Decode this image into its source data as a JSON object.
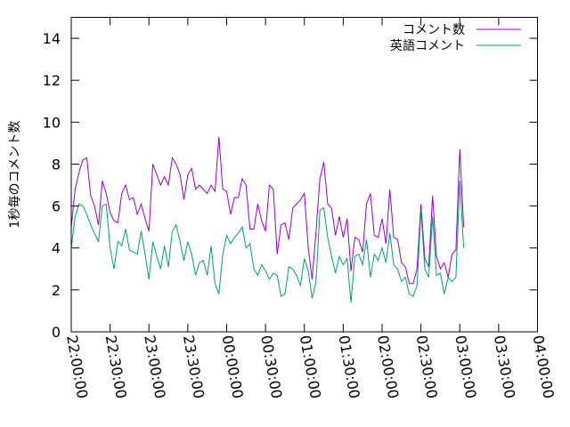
{
  "chart_data": {
    "type": "line",
    "ylabel": "1秒毎のコメント数",
    "ylim": [
      0,
      15
    ],
    "yticks": [
      0,
      2,
      4,
      6,
      8,
      10,
      12,
      14
    ],
    "xrange": [
      "22:00:00",
      "04:00:00"
    ],
    "xticks": [
      "22:00:00",
      "22:30:00",
      "23:00:00",
      "23:30:00",
      "00:00:00",
      "00:30:00",
      "01:00:00",
      "01:30:00",
      "02:00:00",
      "02:30:00",
      "03:00:00",
      "03:30:00",
      "04:00:00"
    ],
    "grid": false,
    "legend_position": "top-right",
    "series": [
      {
        "name": "コメント数",
        "color": "#9400d3",
        "points": [
          [
            "22:00:00",
            5.0
          ],
          [
            "22:03:00",
            6.8
          ],
          [
            "22:06:00",
            7.6
          ],
          [
            "22:09:00",
            8.2
          ],
          [
            "22:12:00",
            8.3
          ],
          [
            "22:15:00",
            6.5
          ],
          [
            "22:18:00",
            6.0
          ],
          [
            "22:21:00",
            5.1
          ],
          [
            "22:24:00",
            7.2
          ],
          [
            "22:27:00",
            6.6
          ],
          [
            "22:30:00",
            5.7
          ],
          [
            "22:33:00",
            5.3
          ],
          [
            "22:36:00",
            5.2
          ],
          [
            "22:39:00",
            6.6
          ],
          [
            "22:42:00",
            7.0
          ],
          [
            "22:45:00",
            6.3
          ],
          [
            "22:48:00",
            6.4
          ],
          [
            "22:51:00",
            5.6
          ],
          [
            "22:54:00",
            6.1
          ],
          [
            "22:57:00",
            5.4
          ],
          [
            "23:00:00",
            4.8
          ],
          [
            "23:03:00",
            8.0
          ],
          [
            "23:06:00",
            7.5
          ],
          [
            "23:09:00",
            7.0
          ],
          [
            "23:12:00",
            7.4
          ],
          [
            "23:15:00",
            7.0
          ],
          [
            "23:18:00",
            8.3
          ],
          [
            "23:21:00",
            8.0
          ],
          [
            "23:24:00",
            7.5
          ],
          [
            "23:27:00",
            6.3
          ],
          [
            "23:30:00",
            7.5
          ],
          [
            "23:33:00",
            7.8
          ],
          [
            "23:36:00",
            6.8
          ],
          [
            "23:39:00",
            7.0
          ],
          [
            "23:42:00",
            6.8
          ],
          [
            "23:45:00",
            6.6
          ],
          [
            "23:48:00",
            7.0
          ],
          [
            "23:51:00",
            6.7
          ],
          [
            "23:54:00",
            9.3
          ],
          [
            "23:57:00",
            6.8
          ],
          [
            "00:00:00",
            6.7
          ],
          [
            "00:03:00",
            5.6
          ],
          [
            "00:06:00",
            6.4
          ],
          [
            "00:09:00",
            6.4
          ],
          [
            "00:12:00",
            7.3
          ],
          [
            "00:15:00",
            7.0
          ],
          [
            "00:18:00",
            4.9
          ],
          [
            "00:21:00",
            4.9
          ],
          [
            "00:24:00",
            6.1
          ],
          [
            "00:27:00",
            5.3
          ],
          [
            "00:30:00",
            4.8
          ],
          [
            "00:33:00",
            7.0
          ],
          [
            "00:36:00",
            6.8
          ],
          [
            "00:39:00",
            3.7
          ],
          [
            "00:42:00",
            5.1
          ],
          [
            "00:45:00",
            5.2
          ],
          [
            "00:48:00",
            4.4
          ],
          [
            "00:51:00",
            5.9
          ],
          [
            "00:54:00",
            6.1
          ],
          [
            "00:57:00",
            6.3
          ],
          [
            "01:00:00",
            6.6
          ],
          [
            "01:03:00",
            4.0
          ],
          [
            "01:06:00",
            2.5
          ],
          [
            "01:09:00",
            4.8
          ],
          [
            "01:12:00",
            7.3
          ],
          [
            "01:15:00",
            8.1
          ],
          [
            "01:18:00",
            6.1
          ],
          [
            "01:21:00",
            5.9
          ],
          [
            "01:24:00",
            4.6
          ],
          [
            "01:27:00",
            5.5
          ],
          [
            "01:30:00",
            4.5
          ],
          [
            "01:33:00",
            5.4
          ],
          [
            "01:36:00",
            2.9
          ],
          [
            "01:39:00",
            4.5
          ],
          [
            "01:42:00",
            4.4
          ],
          [
            "01:45:00",
            3.8
          ],
          [
            "01:48:00",
            6.1
          ],
          [
            "01:51:00",
            6.6
          ],
          [
            "01:54:00",
            4.6
          ],
          [
            "01:57:00",
            4.5
          ],
          [
            "02:00:00",
            5.4
          ],
          [
            "02:03:00",
            4.2
          ],
          [
            "02:06:00",
            6.8
          ],
          [
            "02:09:00",
            4.5
          ],
          [
            "02:12:00",
            4.4
          ],
          [
            "02:15:00",
            3.3
          ],
          [
            "02:18:00",
            3.1
          ],
          [
            "02:21:00",
            2.3
          ],
          [
            "02:24:00",
            2.3
          ],
          [
            "02:27:00",
            3.0
          ],
          [
            "02:30:00",
            6.1
          ],
          [
            "02:33:00",
            3.5
          ],
          [
            "02:36:00",
            3.1
          ],
          [
            "02:39:00",
            6.5
          ],
          [
            "02:42:00",
            3.6
          ],
          [
            "02:45:00",
            3.0
          ],
          [
            "02:48:00",
            3.3
          ],
          [
            "02:51:00",
            2.6
          ],
          [
            "02:54:00",
            3.7
          ],
          [
            "02:57:00",
            3.9
          ],
          [
            "03:00:00",
            8.7
          ],
          [
            "03:03:00",
            5.0
          ]
        ]
      },
      {
        "name": "英語コメント",
        "color": "#009e73",
        "points": [
          [
            "22:00:00",
            4.0
          ],
          [
            "22:03:00",
            5.5
          ],
          [
            "22:06:00",
            6.1
          ],
          [
            "22:09:00",
            6.0
          ],
          [
            "22:12:00",
            5.6
          ],
          [
            "22:15:00",
            5.1
          ],
          [
            "22:18:00",
            4.7
          ],
          [
            "22:21:00",
            4.3
          ],
          [
            "22:24:00",
            6.0
          ],
          [
            "22:27:00",
            6.1
          ],
          [
            "22:30:00",
            4.0
          ],
          [
            "22:33:00",
            3.0
          ],
          [
            "22:36:00",
            4.3
          ],
          [
            "22:39:00",
            4.1
          ],
          [
            "22:42:00",
            4.9
          ],
          [
            "22:45:00",
            3.9
          ],
          [
            "22:48:00",
            3.8
          ],
          [
            "22:51:00",
            3.7
          ],
          [
            "22:54:00",
            4.8
          ],
          [
            "22:57:00",
            3.7
          ],
          [
            "23:00:00",
            2.5
          ],
          [
            "23:03:00",
            4.3
          ],
          [
            "23:06:00",
            3.6
          ],
          [
            "23:09:00",
            3.0
          ],
          [
            "23:12:00",
            4.1
          ],
          [
            "23:15:00",
            3.1
          ],
          [
            "23:18:00",
            4.8
          ],
          [
            "23:21:00",
            5.1
          ],
          [
            "23:24:00",
            4.3
          ],
          [
            "23:27:00",
            3.4
          ],
          [
            "23:30:00",
            4.3
          ],
          [
            "23:33:00",
            3.7
          ],
          [
            "23:36:00",
            2.7
          ],
          [
            "23:39:00",
            3.3
          ],
          [
            "23:42:00",
            3.4
          ],
          [
            "23:45:00",
            2.7
          ],
          [
            "23:48:00",
            4.1
          ],
          [
            "23:51:00",
            2.3
          ],
          [
            "23:54:00",
            1.8
          ],
          [
            "23:57:00",
            3.7
          ],
          [
            "00:00:00",
            4.6
          ],
          [
            "00:03:00",
            4.2
          ],
          [
            "00:06:00",
            4.5
          ],
          [
            "00:09:00",
            4.7
          ],
          [
            "00:12:00",
            5.0
          ],
          [
            "00:15:00",
            4.0
          ],
          [
            "00:18:00",
            4.2
          ],
          [
            "00:21:00",
            3.0
          ],
          [
            "00:24:00",
            2.7
          ],
          [
            "00:27:00",
            3.2
          ],
          [
            "00:30:00",
            2.9
          ],
          [
            "00:33:00",
            2.5
          ],
          [
            "00:36:00",
            2.8
          ],
          [
            "00:39:00",
            2.7
          ],
          [
            "00:42:00",
            1.7
          ],
          [
            "00:45:00",
            1.8
          ],
          [
            "00:48:00",
            3.1
          ],
          [
            "00:51:00",
            3.0
          ],
          [
            "00:54:00",
            2.7
          ],
          [
            "00:57:00",
            2.2
          ],
          [
            "01:00:00",
            3.5
          ],
          [
            "01:03:00",
            2.9
          ],
          [
            "01:06:00",
            1.6
          ],
          [
            "01:09:00",
            2.4
          ],
          [
            "01:12:00",
            5.8
          ],
          [
            "01:15:00",
            5.9
          ],
          [
            "01:18:00",
            4.5
          ],
          [
            "01:21:00",
            3.6
          ],
          [
            "01:24:00",
            2.8
          ],
          [
            "01:27:00",
            3.6
          ],
          [
            "01:30:00",
            3.2
          ],
          [
            "01:33:00",
            3.5
          ],
          [
            "01:36:00",
            1.4
          ],
          [
            "01:39:00",
            3.6
          ],
          [
            "01:42:00",
            3.7
          ],
          [
            "01:45:00",
            3.2
          ],
          [
            "01:48:00",
            4.4
          ],
          [
            "01:51:00",
            2.6
          ],
          [
            "01:54:00",
            3.7
          ],
          [
            "01:57:00",
            3.4
          ],
          [
            "02:00:00",
            4.0
          ],
          [
            "02:03:00",
            3.3
          ],
          [
            "02:06:00",
            4.7
          ],
          [
            "02:09:00",
            3.2
          ],
          [
            "02:12:00",
            3.0
          ],
          [
            "02:15:00",
            2.4
          ],
          [
            "02:18:00",
            2.6
          ],
          [
            "02:21:00",
            1.8
          ],
          [
            "02:24:00",
            1.7
          ],
          [
            "02:27:00",
            2.2
          ],
          [
            "02:30:00",
            5.8
          ],
          [
            "02:33:00",
            3.0
          ],
          [
            "02:36:00",
            2.6
          ],
          [
            "02:39:00",
            5.5
          ],
          [
            "02:42:00",
            2.7
          ],
          [
            "02:45:00",
            2.8
          ],
          [
            "02:48:00",
            1.8
          ],
          [
            "02:51:00",
            2.6
          ],
          [
            "02:54:00",
            2.4
          ],
          [
            "02:57:00",
            2.6
          ],
          [
            "03:00:00",
            7.2
          ],
          [
            "03:03:00",
            4.0
          ]
        ]
      }
    ]
  }
}
